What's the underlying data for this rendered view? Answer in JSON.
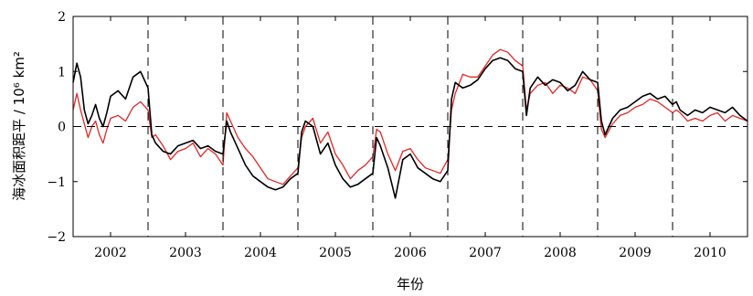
{
  "chart_data": {
    "type": "line",
    "title": "",
    "xlabel": "年份",
    "ylabel": "海冰面积距平 / 10⁶ km²",
    "xlim": [
      2001.5,
      2010.5
    ],
    "ylim": [
      -2,
      2
    ],
    "yticks": [
      -2,
      -1,
      0,
      1,
      2
    ],
    "x_tick_labels": [
      "2002",
      "2003",
      "2004",
      "2005",
      "2006",
      "2007",
      "2008",
      "2009",
      "2010"
    ],
    "x_tick_positions": [
      2002,
      2003,
      2004,
      2005,
      2006,
      2007,
      2008,
      2009,
      2010
    ],
    "year_separators": [
      2002.5,
      2003.5,
      2004.5,
      2005.5,
      2006.5,
      2007.5,
      2008.5,
      2009.5
    ],
    "zero_line": 0,
    "grid": false,
    "legend": "none",
    "series": [
      {
        "color": "#e32626",
        "x": [
          2001.5,
          2001.55,
          2001.6,
          2001.65,
          2001.7,
          2001.75,
          2001.8,
          2001.85,
          2001.9,
          2001.95,
          2002.0,
          2002.1,
          2002.2,
          2002.3,
          2002.4,
          2002.5,
          2002.55,
          2002.6,
          2002.7,
          2002.8,
          2002.9,
          2003.0,
          2003.1,
          2003.2,
          2003.3,
          2003.4,
          2003.5,
          2003.55,
          2003.6,
          2003.7,
          2003.8,
          2003.9,
          2004.0,
          2004.1,
          2004.2,
          2004.3,
          2004.4,
          2004.5,
          2004.55,
          2004.6,
          2004.7,
          2004.8,
          2004.9,
          2005.0,
          2005.1,
          2005.2,
          2005.3,
          2005.4,
          2005.5,
          2005.55,
          2005.6,
          2005.7,
          2005.8,
          2005.9,
          2006.0,
          2006.1,
          2006.2,
          2006.3,
          2006.4,
          2006.5,
          2006.55,
          2006.6,
          2006.7,
          2006.8,
          2006.9,
          2007.0,
          2007.1,
          2007.2,
          2007.3,
          2007.4,
          2007.5,
          2007.55,
          2007.6,
          2007.7,
          2007.8,
          2007.9,
          2008.0,
          2008.1,
          2008.2,
          2008.3,
          2008.4,
          2008.5,
          2008.55,
          2008.6,
          2008.7,
          2008.8,
          2008.9,
          2009.0,
          2009.1,
          2009.2,
          2009.3,
          2009.4,
          2009.5,
          2009.55,
          2009.6,
          2009.7,
          2009.8,
          2009.9,
          2010.0,
          2010.1,
          2010.2,
          2010.3,
          2010.4,
          2010.5
        ],
        "y": [
          0.3,
          0.6,
          0.3,
          0.05,
          -0.2,
          0.0,
          0.1,
          -0.15,
          -0.3,
          -0.05,
          0.15,
          0.2,
          0.1,
          0.35,
          0.45,
          0.3,
          -0.2,
          -0.15,
          -0.35,
          -0.6,
          -0.45,
          -0.4,
          -0.3,
          -0.55,
          -0.4,
          -0.5,
          -0.7,
          0.25,
          0.1,
          -0.2,
          -0.4,
          -0.55,
          -0.75,
          -0.95,
          -1.0,
          -1.05,
          -0.9,
          -0.75,
          -0.2,
          0.0,
          0.15,
          -0.3,
          -0.1,
          -0.5,
          -0.7,
          -0.95,
          -0.8,
          -0.7,
          -0.55,
          -0.05,
          -0.1,
          -0.5,
          -0.8,
          -0.45,
          -0.4,
          -0.6,
          -0.75,
          -0.8,
          -0.85,
          -0.6,
          0.3,
          0.6,
          0.95,
          0.9,
          0.9,
          1.1,
          1.3,
          1.4,
          1.35,
          1.2,
          1.1,
          0.3,
          0.6,
          0.75,
          0.8,
          0.6,
          0.75,
          0.7,
          0.6,
          0.9,
          0.85,
          0.65,
          -0.05,
          -0.2,
          0.05,
          0.2,
          0.25,
          0.35,
          0.4,
          0.5,
          0.45,
          0.35,
          0.25,
          0.3,
          0.25,
          0.1,
          0.15,
          0.1,
          0.2,
          0.25,
          0.1,
          0.2,
          0.15,
          0.1
        ]
      },
      {
        "color": "#000000",
        "x": [
          2001.5,
          2001.55,
          2001.6,
          2001.65,
          2001.7,
          2001.75,
          2001.8,
          2001.85,
          2001.9,
          2001.95,
          2002.0,
          2002.1,
          2002.2,
          2002.3,
          2002.4,
          2002.5,
          2002.55,
          2002.6,
          2002.7,
          2002.8,
          2002.9,
          2003.0,
          2003.1,
          2003.2,
          2003.3,
          2003.4,
          2003.5,
          2003.55,
          2003.6,
          2003.7,
          2003.8,
          2003.9,
          2004.0,
          2004.1,
          2004.2,
          2004.3,
          2004.4,
          2004.5,
          2004.55,
          2004.6,
          2004.7,
          2004.8,
          2004.9,
          2005.0,
          2005.1,
          2005.2,
          2005.3,
          2005.4,
          2005.5,
          2005.55,
          2005.6,
          2005.7,
          2005.8,
          2005.9,
          2006.0,
          2006.1,
          2006.2,
          2006.3,
          2006.4,
          2006.5,
          2006.55,
          2006.6,
          2006.7,
          2006.8,
          2006.9,
          2007.0,
          2007.1,
          2007.2,
          2007.3,
          2007.4,
          2007.5,
          2007.55,
          2007.6,
          2007.7,
          2007.8,
          2007.9,
          2008.0,
          2008.1,
          2008.2,
          2008.3,
          2008.4,
          2008.5,
          2008.55,
          2008.6,
          2008.7,
          2008.8,
          2008.9,
          2009.0,
          2009.1,
          2009.2,
          2009.3,
          2009.4,
          2009.5,
          2009.55,
          2009.6,
          2009.7,
          2009.8,
          2009.9,
          2010.0,
          2010.1,
          2010.2,
          2010.3,
          2010.4,
          2010.5
        ],
        "y": [
          0.8,
          1.15,
          0.9,
          0.3,
          0.05,
          0.2,
          0.4,
          0.15,
          0.0,
          0.25,
          0.55,
          0.65,
          0.5,
          0.9,
          1.0,
          0.7,
          -0.15,
          -0.3,
          -0.45,
          -0.5,
          -0.35,
          -0.3,
          -0.25,
          -0.4,
          -0.35,
          -0.45,
          -0.5,
          0.1,
          -0.1,
          -0.4,
          -0.7,
          -0.9,
          -1.0,
          -1.1,
          -1.15,
          -1.1,
          -0.95,
          -0.85,
          -0.1,
          0.1,
          0.0,
          -0.5,
          -0.3,
          -0.7,
          -0.95,
          -1.1,
          -1.05,
          -0.95,
          -0.85,
          -0.2,
          -0.35,
          -0.75,
          -1.3,
          -0.6,
          -0.5,
          -0.75,
          -0.85,
          -0.95,
          -1.0,
          -0.8,
          0.5,
          0.8,
          0.7,
          0.75,
          0.85,
          1.05,
          1.2,
          1.25,
          1.2,
          1.05,
          1.0,
          0.2,
          0.7,
          0.9,
          0.75,
          0.85,
          0.8,
          0.65,
          0.75,
          1.0,
          0.85,
          0.8,
          0.1,
          -0.15,
          0.15,
          0.3,
          0.35,
          0.45,
          0.55,
          0.6,
          0.5,
          0.55,
          0.4,
          0.45,
          0.3,
          0.2,
          0.3,
          0.25,
          0.35,
          0.3,
          0.25,
          0.35,
          0.2,
          0.1
        ]
      }
    ]
  }
}
